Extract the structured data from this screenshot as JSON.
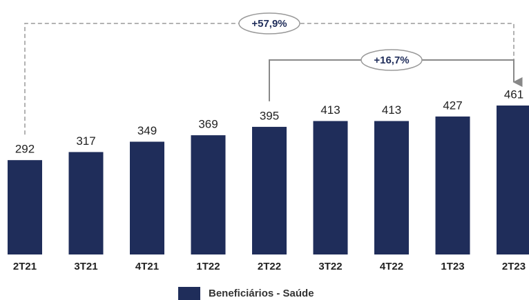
{
  "chart_data": {
    "type": "bar",
    "categories": [
      "2T21",
      "3T21",
      "4T21",
      "1T22",
      "2T22",
      "3T22",
      "4T22",
      "1T23",
      "2T23"
    ],
    "series": [
      {
        "name": "Beneficiários - Saúde",
        "color": "#1f2d5a",
        "values": [
          292,
          317,
          349,
          369,
          395,
          413,
          413,
          427,
          461
        ]
      }
    ],
    "annotations": [
      {
        "text": "+57,9%",
        "from": "2T21",
        "to": "2T23",
        "style": "dashed"
      },
      {
        "text": "+16,7%",
        "from": "2T22",
        "to": "2T23",
        "style": "solid"
      }
    ],
    "legend": "bottom"
  }
}
